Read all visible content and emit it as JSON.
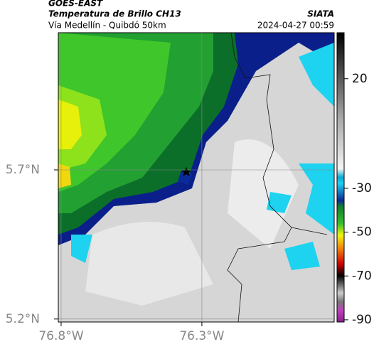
{
  "header": {
    "source": "GOES-EAST",
    "title": "Temperatura de Brillo CH13",
    "brand": "SIATA",
    "subtitle": "Vía Medellín - Quibdó 50km",
    "timestamp": "2024-04-27 00:59"
  },
  "map": {
    "lonlim": [
      -76.81,
      -75.83
    ],
    "latlim": [
      5.19,
      6.16
    ],
    "lonticks": [
      {
        "value": -76.8,
        "label": "76.8°W"
      },
      {
        "value": -76.3,
        "label": "76.3°W"
      }
    ],
    "latticks": [
      {
        "value": 5.7,
        "label": "5.7°N"
      },
      {
        "value": 5.2,
        "label": "5.2°N"
      }
    ]
  },
  "colorbar": {
    "lim": [
      -91,
      41
    ],
    "ticks": [
      20,
      -30,
      -50,
      -70,
      -90
    ]
  }
}
